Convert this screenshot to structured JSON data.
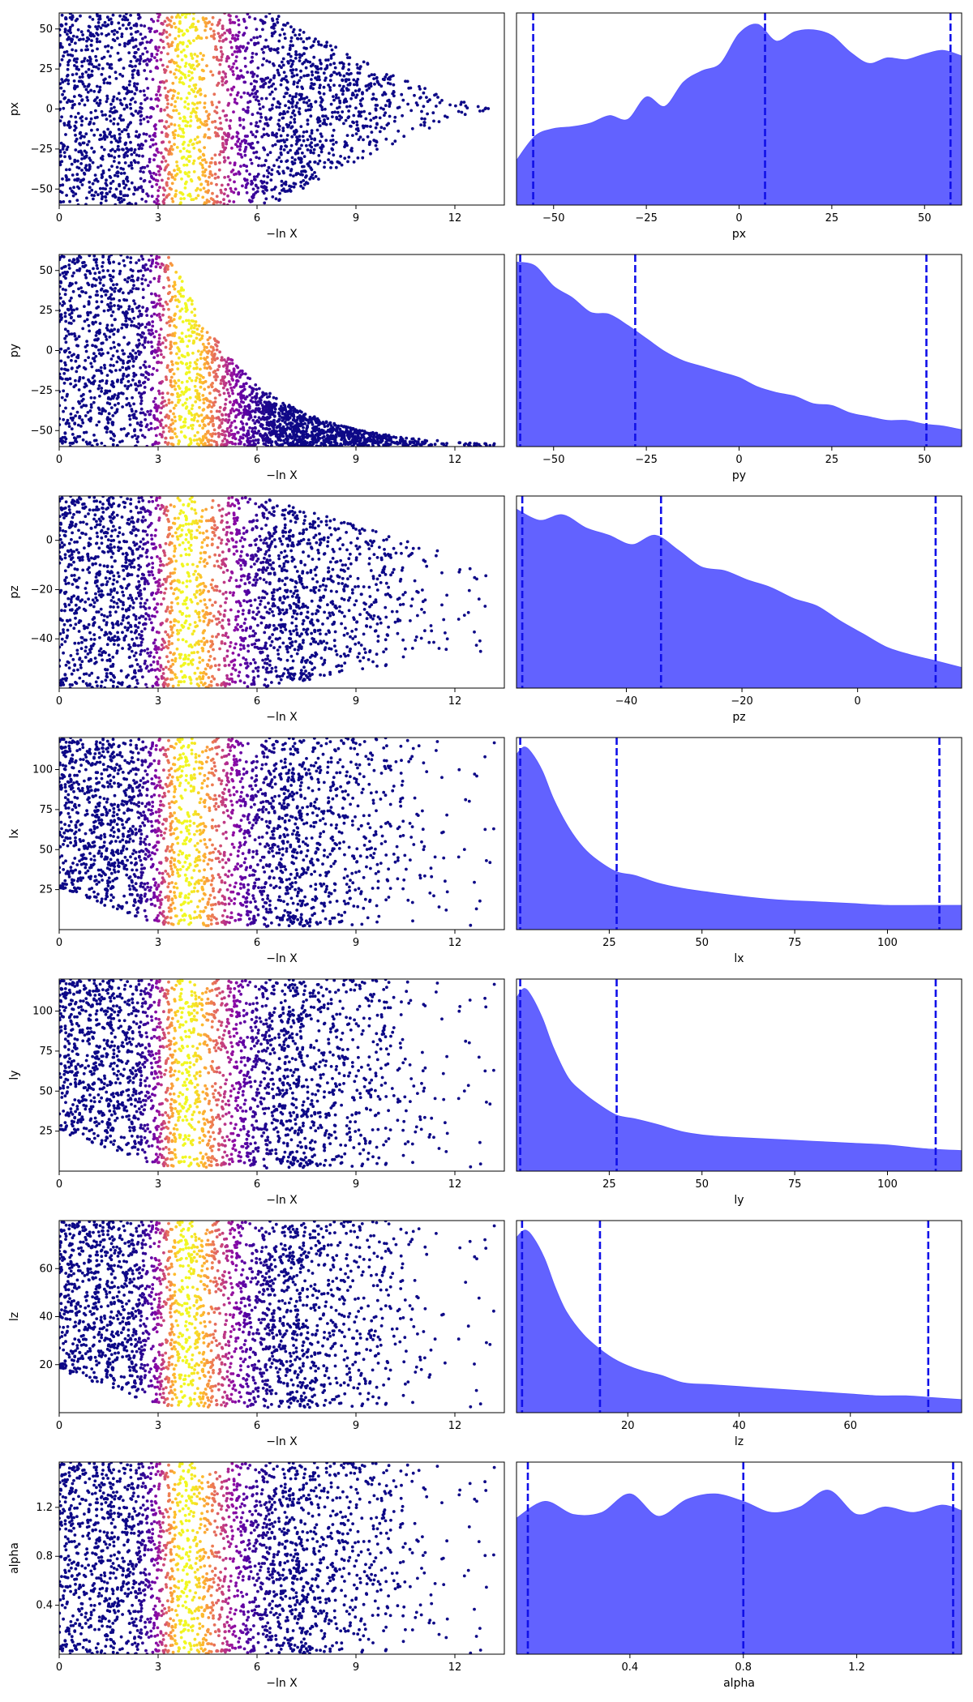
{
  "chart_data": [
    {
      "type": "scatter",
      "panel": "trace",
      "param": "px",
      "xlabel": "−ln X",
      "ylabel": "px",
      "xlim": [
        0,
        13.5
      ],
      "ylim": [
        -60,
        60
      ],
      "xticks": [
        0,
        3,
        6,
        9,
        12
      ],
      "yticks": [
        -50,
        -25,
        0,
        25,
        50
      ],
      "colormap": "plasma",
      "color_peak_at_x": 3.8,
      "envelope": {
        "type": "symmetric-taper",
        "lo_at_0": -60,
        "hi_at_0": 60,
        "taper_start_x": 6.5,
        "taper_end_x": 13.2
      },
      "n_points": 2600
    },
    {
      "type": "area",
      "panel": "marginal",
      "param": "px",
      "xlabel": "px",
      "xlim": [
        -60,
        60
      ],
      "xticks": [
        -50,
        -25,
        0,
        25,
        50
      ],
      "fill_color": "#5a5aff",
      "quantile_line_color": "#1010e8",
      "quantiles": [
        -55.5,
        7,
        57
      ],
      "x": [
        -60,
        -55,
        -50,
        -45,
        -40,
        -35,
        -30,
        -25,
        -20,
        -15,
        -10,
        -5,
        0,
        5,
        10,
        15,
        20,
        25,
        30,
        35,
        40,
        45,
        50,
        55,
        60
      ],
      "density": [
        0.24,
        0.37,
        0.41,
        0.42,
        0.44,
        0.48,
        0.46,
        0.58,
        0.53,
        0.66,
        0.72,
        0.76,
        0.92,
        0.97,
        0.88,
        0.93,
        0.94,
        0.91,
        0.82,
        0.76,
        0.79,
        0.78,
        0.81,
        0.83,
        0.8
      ]
    },
    {
      "type": "scatter",
      "panel": "trace",
      "param": "py",
      "xlabel": "−ln X",
      "ylabel": "py",
      "xlim": [
        0,
        13.5
      ],
      "ylim": [
        -60,
        60
      ],
      "xticks": [
        0,
        3,
        6,
        9,
        12
      ],
      "yticks": [
        -50,
        -25,
        0,
        25,
        50
      ],
      "colormap": "plasma",
      "color_peak_at_x": 3.8,
      "envelope": {
        "type": "bottom-decay",
        "lo": -60,
        "hi_at_0": 60,
        "decay_start_x": 3.4,
        "decay_end_x": 13.2
      },
      "n_points": 2600
    },
    {
      "type": "area",
      "panel": "marginal",
      "param": "py",
      "xlabel": "py",
      "xlim": [
        -60,
        60
      ],
      "xticks": [
        -50,
        -25,
        0,
        25,
        50
      ],
      "fill_color": "#5a5aff",
      "quantile_line_color": "#1010e8",
      "quantiles": [
        -59,
        -28,
        50.5
      ],
      "x": [
        -60,
        -55,
        -50,
        -45,
        -40,
        -35,
        -30,
        -25,
        -20,
        -15,
        -10,
        -5,
        0,
        5,
        10,
        15,
        20,
        25,
        30,
        35,
        40,
        45,
        50,
        55,
        60
      ],
      "density": [
        0.99,
        0.97,
        0.86,
        0.8,
        0.72,
        0.71,
        0.65,
        0.58,
        0.51,
        0.46,
        0.43,
        0.4,
        0.37,
        0.32,
        0.29,
        0.27,
        0.23,
        0.22,
        0.18,
        0.16,
        0.14,
        0.14,
        0.12,
        0.11,
        0.09
      ]
    },
    {
      "type": "scatter",
      "panel": "trace",
      "param": "pz",
      "xlabel": "−ln X",
      "ylabel": "pz",
      "xlim": [
        0,
        13.5
      ],
      "ylim": [
        -60,
        18
      ],
      "xticks": [
        0,
        3,
        6,
        9,
        12
      ],
      "yticks": [
        -40,
        -20,
        0
      ],
      "colormap": "plasma",
      "color_peak_at_x": 3.8,
      "envelope": {
        "type": "taper-upper",
        "lo": -60,
        "hi_at_0": 18,
        "taper_start_x": 6.0,
        "taper_end_x": 13.2,
        "hi_at_end": -10
      },
      "n_points": 2600
    },
    {
      "type": "area",
      "panel": "marginal",
      "param": "pz",
      "xlabel": "pz",
      "xlim": [
        -59,
        18
      ],
      "xticks": [
        -40,
        -20,
        0
      ],
      "fill_color": "#5a5aff",
      "quantile_line_color": "#1010e8",
      "quantiles": [
        -58,
        -34,
        13.5
      ],
      "x": [
        -59,
        -55,
        -51,
        -47,
        -43,
        -39,
        -35,
        -31,
        -27,
        -23,
        -19,
        -15,
        -11,
        -7,
        -3,
        1,
        5,
        9,
        13,
        18
      ],
      "density": [
        0.96,
        0.9,
        0.93,
        0.86,
        0.82,
        0.77,
        0.82,
        0.74,
        0.65,
        0.63,
        0.58,
        0.54,
        0.48,
        0.44,
        0.36,
        0.29,
        0.22,
        0.18,
        0.15,
        0.11
      ]
    },
    {
      "type": "scatter",
      "panel": "trace",
      "param": "lx",
      "xlabel": "−ln X",
      "ylabel": "lx",
      "xlim": [
        0,
        13.5
      ],
      "ylim": [
        0,
        120
      ],
      "xticks": [
        0,
        3,
        6,
        9,
        12
      ],
      "yticks": [
        25,
        50,
        75,
        100
      ],
      "colormap": "plasma",
      "color_peak_at_x": 3.8,
      "envelope": {
        "type": "floor-rise",
        "lo_at_0": 25,
        "lo_at_peak": 2,
        "hi": 120
      },
      "n_points": 2600
    },
    {
      "type": "area",
      "panel": "marginal",
      "param": "lx",
      "xlabel": "lx",
      "xlim": [
        0,
        120
      ],
      "xticks": [
        25,
        50,
        75,
        100
      ],
      "fill_color": "#5a5aff",
      "quantile_line_color": "#1010e8",
      "quantiles": [
        1,
        27,
        114
      ],
      "x": [
        0,
        2,
        4,
        7,
        10,
        14,
        18,
        22,
        27,
        32,
        38,
        45,
        52,
        60,
        70,
        80,
        90,
        100,
        110,
        120
      ],
      "density": [
        0.94,
        0.98,
        0.95,
        0.85,
        0.7,
        0.55,
        0.44,
        0.37,
        0.31,
        0.29,
        0.25,
        0.22,
        0.2,
        0.18,
        0.16,
        0.15,
        0.14,
        0.13,
        0.13,
        0.13
      ]
    },
    {
      "type": "scatter",
      "panel": "trace",
      "param": "ly",
      "xlabel": "−ln X",
      "ylabel": "ly",
      "xlim": [
        0,
        13.5
      ],
      "ylim": [
        0,
        120
      ],
      "xticks": [
        0,
        3,
        6,
        9,
        12
      ],
      "yticks": [
        25,
        50,
        75,
        100
      ],
      "colormap": "plasma",
      "color_peak_at_x": 3.8,
      "envelope": {
        "type": "floor-rise",
        "lo_at_0": 25,
        "lo_at_peak": 2,
        "hi": 120
      },
      "n_points": 2600
    },
    {
      "type": "area",
      "panel": "marginal",
      "param": "ly",
      "xlabel": "ly",
      "xlim": [
        0,
        120
      ],
      "xticks": [
        25,
        50,
        75,
        100
      ],
      "fill_color": "#5a5aff",
      "quantile_line_color": "#1010e8",
      "quantiles": [
        1,
        27,
        113
      ],
      "x": [
        0,
        2,
        4,
        7,
        10,
        14,
        18,
        22,
        27,
        32,
        38,
        45,
        52,
        60,
        70,
        80,
        90,
        100,
        110,
        120
      ],
      "density": [
        0.93,
        0.98,
        0.94,
        0.82,
        0.66,
        0.5,
        0.42,
        0.36,
        0.3,
        0.28,
        0.25,
        0.21,
        0.19,
        0.18,
        0.17,
        0.16,
        0.15,
        0.14,
        0.12,
        0.11
      ]
    },
    {
      "type": "scatter",
      "panel": "trace",
      "param": "lz",
      "xlabel": "−ln X",
      "ylabel": "lz",
      "xlim": [
        0,
        13.5
      ],
      "ylim": [
        0,
        80
      ],
      "xticks": [
        0,
        3,
        6,
        9,
        12
      ],
      "yticks": [
        20,
        40,
        60
      ],
      "colormap": "plasma",
      "color_peak_at_x": 3.8,
      "envelope": {
        "type": "floor-rise",
        "lo_at_0": 18,
        "lo_at_peak": 2,
        "hi": 80
      },
      "n_points": 2600
    },
    {
      "type": "area",
      "panel": "marginal",
      "param": "lz",
      "xlabel": "lz",
      "xlim": [
        0,
        80
      ],
      "xticks": [
        20,
        40,
        60
      ],
      "fill_color": "#5a5aff",
      "quantile_line_color": "#1010e8",
      "quantiles": [
        1,
        15,
        74
      ],
      "x": [
        0,
        1.5,
        3,
        5,
        7,
        9,
        12,
        15,
        18,
        22,
        26,
        30,
        35,
        40,
        45,
        50,
        55,
        60,
        65,
        70,
        75,
        80
      ],
      "density": [
        0.94,
        0.98,
        0.94,
        0.83,
        0.67,
        0.54,
        0.42,
        0.34,
        0.28,
        0.23,
        0.2,
        0.16,
        0.15,
        0.14,
        0.13,
        0.12,
        0.11,
        0.1,
        0.09,
        0.09,
        0.08,
        0.07
      ]
    },
    {
      "type": "scatter",
      "panel": "trace",
      "param": "alpha",
      "xlabel": "−ln X",
      "ylabel": "alpha",
      "xlim": [
        0,
        13.5
      ],
      "ylim": [
        0,
        1.57
      ],
      "xticks": [
        0,
        3,
        6,
        9,
        12
      ],
      "yticks": [
        0.4,
        0.8,
        1.2
      ],
      "colormap": "plasma",
      "color_peak_at_x": 3.8,
      "envelope": {
        "type": "full",
        "lo": 0,
        "hi": 1.57
      },
      "n_points": 2600
    },
    {
      "type": "area",
      "panel": "marginal",
      "param": "alpha",
      "xlabel": "alpha",
      "xlim": [
        0,
        1.57
      ],
      "xticks": [
        0.4,
        0.8,
        1.2
      ],
      "fill_color": "#5a5aff",
      "quantile_line_color": "#1010e8",
      "quantiles": [
        0.04,
        0.8,
        1.54
      ],
      "x": [
        0,
        0.1,
        0.2,
        0.3,
        0.4,
        0.5,
        0.6,
        0.7,
        0.8,
        0.9,
        1.0,
        1.1,
        1.2,
        1.3,
        1.4,
        1.5,
        1.57
      ],
      "density": [
        0.73,
        0.82,
        0.75,
        0.76,
        0.86,
        0.74,
        0.83,
        0.86,
        0.82,
        0.76,
        0.79,
        0.88,
        0.75,
        0.79,
        0.76,
        0.8,
        0.77
      ]
    }
  ]
}
